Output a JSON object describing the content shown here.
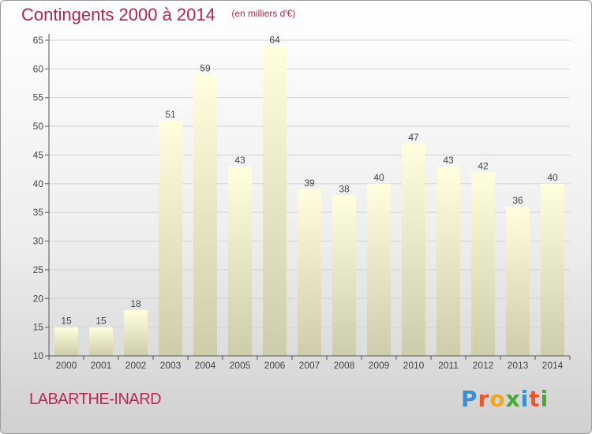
{
  "header": {
    "title": "Contingents 2000 à 2014",
    "unit": "(en milliers d'€)"
  },
  "footer": {
    "commune": "LABARTHE-INARD",
    "logo": "Proxiti",
    "logo_colors": [
      "#3a8fd4",
      "#e8572a",
      "#f2a81d",
      "#4aa63b",
      "#3a8fd4",
      "#e8572a",
      "#4aa63b"
    ]
  },
  "chart_data": {
    "type": "bar",
    "title": "Contingents 2000 à 2014",
    "subtitle": "(en milliers d'€)",
    "categories": [
      "2000",
      "2001",
      "2002",
      "2003",
      "2004",
      "2005",
      "2006",
      "2007",
      "2008",
      "2009",
      "2010",
      "2011",
      "2012",
      "2013",
      "2014"
    ],
    "values": [
      15,
      15,
      18,
      51,
      59,
      43,
      64,
      39,
      38,
      40,
      47,
      43,
      42,
      36,
      40
    ],
    "ylim": [
      10,
      65
    ],
    "yticks": [
      10,
      15,
      20,
      25,
      30,
      35,
      40,
      45,
      50,
      55,
      60,
      65
    ],
    "grid": true,
    "data_labels": true,
    "colors": {
      "bar_top": "#ffffde",
      "bar_bottom": "#cdcdab",
      "grid": "#d2d2d2",
      "axis_text": "#444444"
    }
  }
}
